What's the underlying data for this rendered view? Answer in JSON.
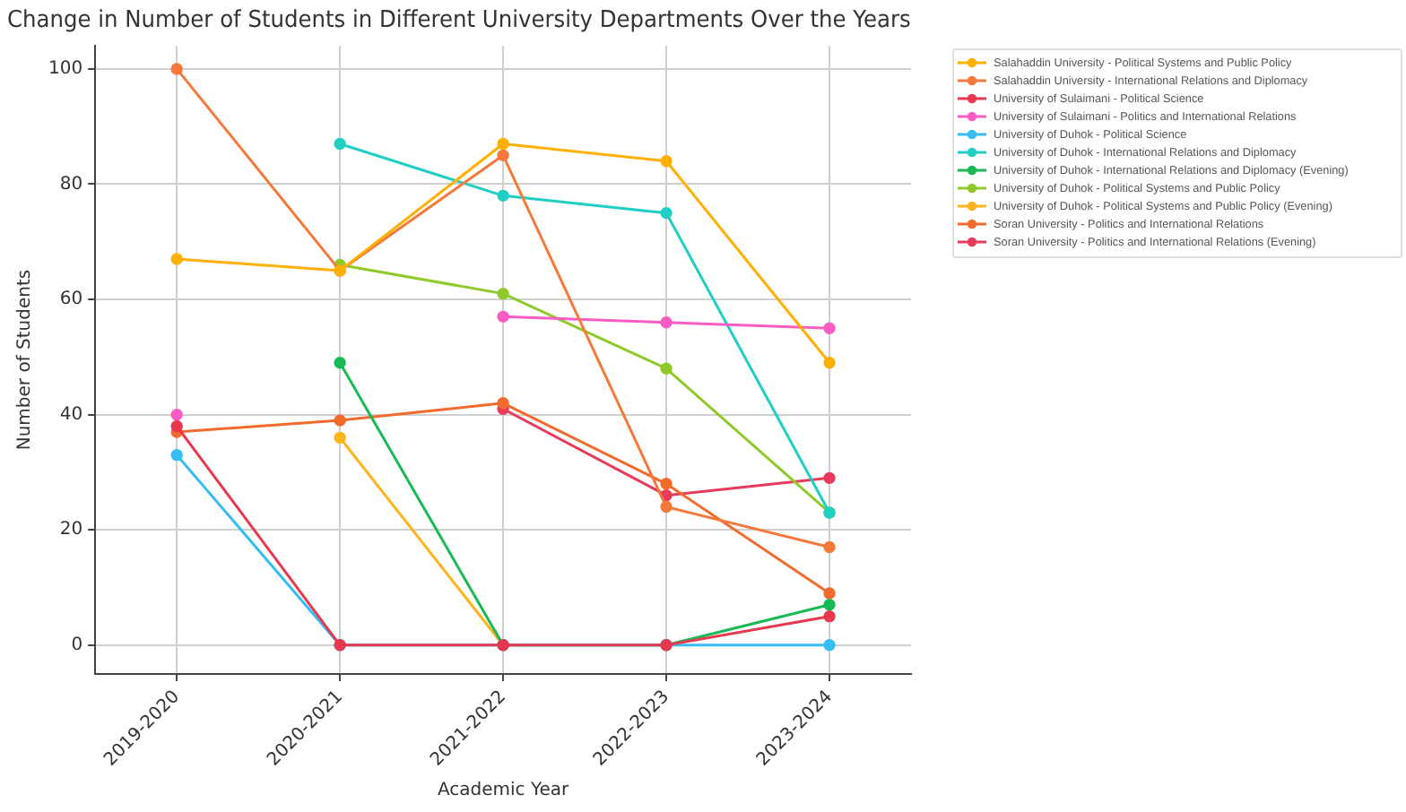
{
  "chart_data": {
    "type": "line",
    "title": "Change in Number of Students in Different University Departments Over the Years",
    "xlabel": "Academic Year",
    "ylabel": "Number of Students",
    "categories": [
      "2019-2020",
      "2020-2021",
      "2021-2022",
      "2022-2023",
      "2023-2024"
    ],
    "ylim": [
      -5,
      104
    ],
    "yticks": [
      0,
      20,
      40,
      60,
      80,
      100
    ],
    "grid": true,
    "legend": "top right",
    "marker": "circle",
    "line_style": "solid",
    "series": [
      {
        "name": "Salahaddin University - Political Systems and Public Policy",
        "color": "#ffb000",
        "values": [
          67,
          65,
          87,
          84,
          49
        ]
      },
      {
        "name": "Salahaddin University - International Relations and Diplomacy",
        "color": "#f5793a",
        "values": [
          100,
          65,
          85,
          24,
          17
        ]
      },
      {
        "name": "University of Sulaimani - Political Science",
        "color": "#e8384f",
        "values": [
          38,
          0,
          0,
          0,
          5
        ]
      },
      {
        "name": "University of Sulaimani - Politics and International Relations",
        "color": "#f95cc2",
        "values": [
          40,
          null,
          57,
          56,
          55
        ]
      },
      {
        "name": "University of Duhok - Political Science",
        "color": "#35bdf4",
        "values": [
          33,
          0,
          0,
          0,
          0
        ]
      },
      {
        "name": "University of Duhok - International Relations and Diplomacy",
        "color": "#1fcfc4",
        "values": [
          null,
          87,
          78,
          75,
          23
        ]
      },
      {
        "name": "University of Duhok - International Relations and Diplomacy (Evening)",
        "color": "#19b956",
        "values": [
          null,
          49,
          0,
          0,
          7
        ]
      },
      {
        "name": "University of Duhok - Political Systems and Public Policy",
        "color": "#8fc92a",
        "values": [
          null,
          66,
          61,
          48,
          23
        ]
      },
      {
        "name": "University of Duhok - Political Systems and Public Policy (Evening)",
        "color": "#ffb31a",
        "values": [
          null,
          36,
          0,
          null,
          null
        ]
      },
      {
        "name": "Soran University - Politics and International Relations",
        "color": "#f26b2c",
        "values": [
          37,
          39,
          42,
          28,
          9
        ]
      },
      {
        "name": "Soran University - Politics and International Relations (Evening)",
        "color": "#e83a5a",
        "values": [
          null,
          null,
          41,
          26,
          29
        ]
      }
    ]
  }
}
